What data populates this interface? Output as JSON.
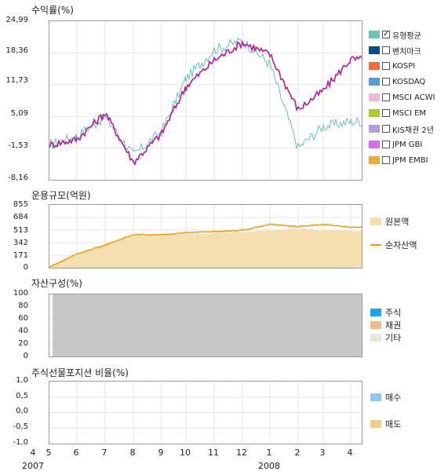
{
  "chart_data": [
    {
      "id": "returns",
      "type": "line",
      "title": "수익률(%)",
      "yticks": [
        "24,99",
        "18,36",
        "11,73",
        "5,09",
        "-1,53",
        "-8,16"
      ],
      "ylim": [
        -8.16,
        24.99
      ],
      "x": [
        "2007-04",
        "2007-05",
        "2007-06",
        "2007-07",
        "2007-08",
        "2007-09",
        "2007-10",
        "2007-11",
        "2007-12",
        "2008-01",
        "2008-02",
        "2008-03",
        "2008-04"
      ],
      "series": [
        {
          "name": "유형평균",
          "color": "#66c2b0",
          "values": [
            null,
            -0.8,
            1.0,
            5.0,
            -3.0,
            2.0,
            13.0,
            19.0,
            21.0,
            16.0,
            -1.5,
            3.0,
            4.0
          ]
        },
        {
          "name": "",
          "color": "#b8189d",
          "values": [
            null,
            -0.9,
            0.3,
            5.8,
            -4.5,
            1.5,
            11.3,
            16.8,
            20.5,
            18.0,
            6.5,
            10.5,
            17.0
          ]
        }
      ],
      "legend": [
        {
          "label": "유형평균",
          "color": "#6cc4b4",
          "checked": true
        },
        {
          "label": "벤치마크",
          "color": "#0c4a8a",
          "checked": false
        },
        {
          "label": "KOSPI",
          "color": "#ee6c3b",
          "checked": false
        },
        {
          "label": "KOSDAQ",
          "color": "#5b9ad9",
          "checked": false
        },
        {
          "label": "MSCI ACWI",
          "color": "#f4b8d6",
          "checked": false
        },
        {
          "label": "MSCI EM",
          "color": "#a6cf2e",
          "checked": false
        },
        {
          "label": "KIS채권 2년",
          "color": "#b39ddb",
          "checked": false
        },
        {
          "label": "JPM GBI",
          "color": "#d46ee8",
          "checked": false
        },
        {
          "label": "JPM EMBI",
          "color": "#f2a73b",
          "checked": false
        }
      ]
    },
    {
      "id": "aum",
      "type": "area",
      "title": "운용규모(억원)",
      "yticks": [
        "855",
        "684",
        "513",
        "342",
        "171",
        "0"
      ],
      "ylim": [
        0,
        855
      ],
      "x": [
        "2007-04",
        "2007-05",
        "2007-06",
        "2007-07",
        "2007-08",
        "2007-09",
        "2007-10",
        "2007-11",
        "2007-12",
        "2008-01",
        "2008-02",
        "2008-03",
        "2008-04"
      ],
      "series": [
        {
          "name": "원본액",
          "color": "#f5deb0",
          "values": [
            null,
            10,
            180,
            300,
            440,
            450,
            460,
            470,
            490,
            510,
            530,
            510,
            500
          ]
        },
        {
          "name": "순자산액",
          "color": "#f39800",
          "values": [
            null,
            10,
            185,
            310,
            450,
            450,
            480,
            490,
            510,
            590,
            560,
            590,
            550
          ]
        }
      ],
      "legend": [
        {
          "label": "원본액",
          "color": "#f5deb0"
        },
        {
          "label": "순자산액",
          "color": "#f39800"
        }
      ]
    },
    {
      "id": "composition",
      "type": "area",
      "title": "자산구성(%)",
      "yticks": [
        "100",
        "80",
        "60",
        "40",
        "20",
        "0"
      ],
      "ylim": [
        0,
        100
      ],
      "start": "2007-05",
      "series": [
        {
          "name": "주식",
          "color": "#1aa7ee",
          "values": [
            0
          ]
        },
        {
          "name": "채권",
          "color": "#f4bb8a",
          "values": [
            0
          ]
        },
        {
          "name": "기타",
          "color": "#c8c8c8",
          "values": [
            100
          ]
        }
      ],
      "legend": [
        {
          "label": "주식",
          "color": "#1aa7ee"
        },
        {
          "label": "채권",
          "color": "#f4bb8a"
        },
        {
          "label": "기타",
          "color": "#e9e7da"
        }
      ]
    },
    {
      "id": "futures",
      "type": "bar",
      "title": "주식선물포지션 비율(%)",
      "yticks": [
        "1,0",
        "0,5",
        "0,0",
        "-0,5",
        "-1,0"
      ],
      "ylim": [
        -1.0,
        1.0
      ],
      "series": [],
      "legend": [
        {
          "label": "매수",
          "color": "#8fc7f3"
        },
        {
          "label": "매도",
          "color": "#f0cf88"
        }
      ]
    }
  ],
  "x_axis": {
    "month_labels": [
      "4",
      "5",
      "6",
      "7",
      "8",
      "9",
      "10",
      "11",
      "12",
      "1",
      "2",
      "3",
      "4"
    ],
    "year_labels": [
      "2007",
      "2008"
    ]
  }
}
